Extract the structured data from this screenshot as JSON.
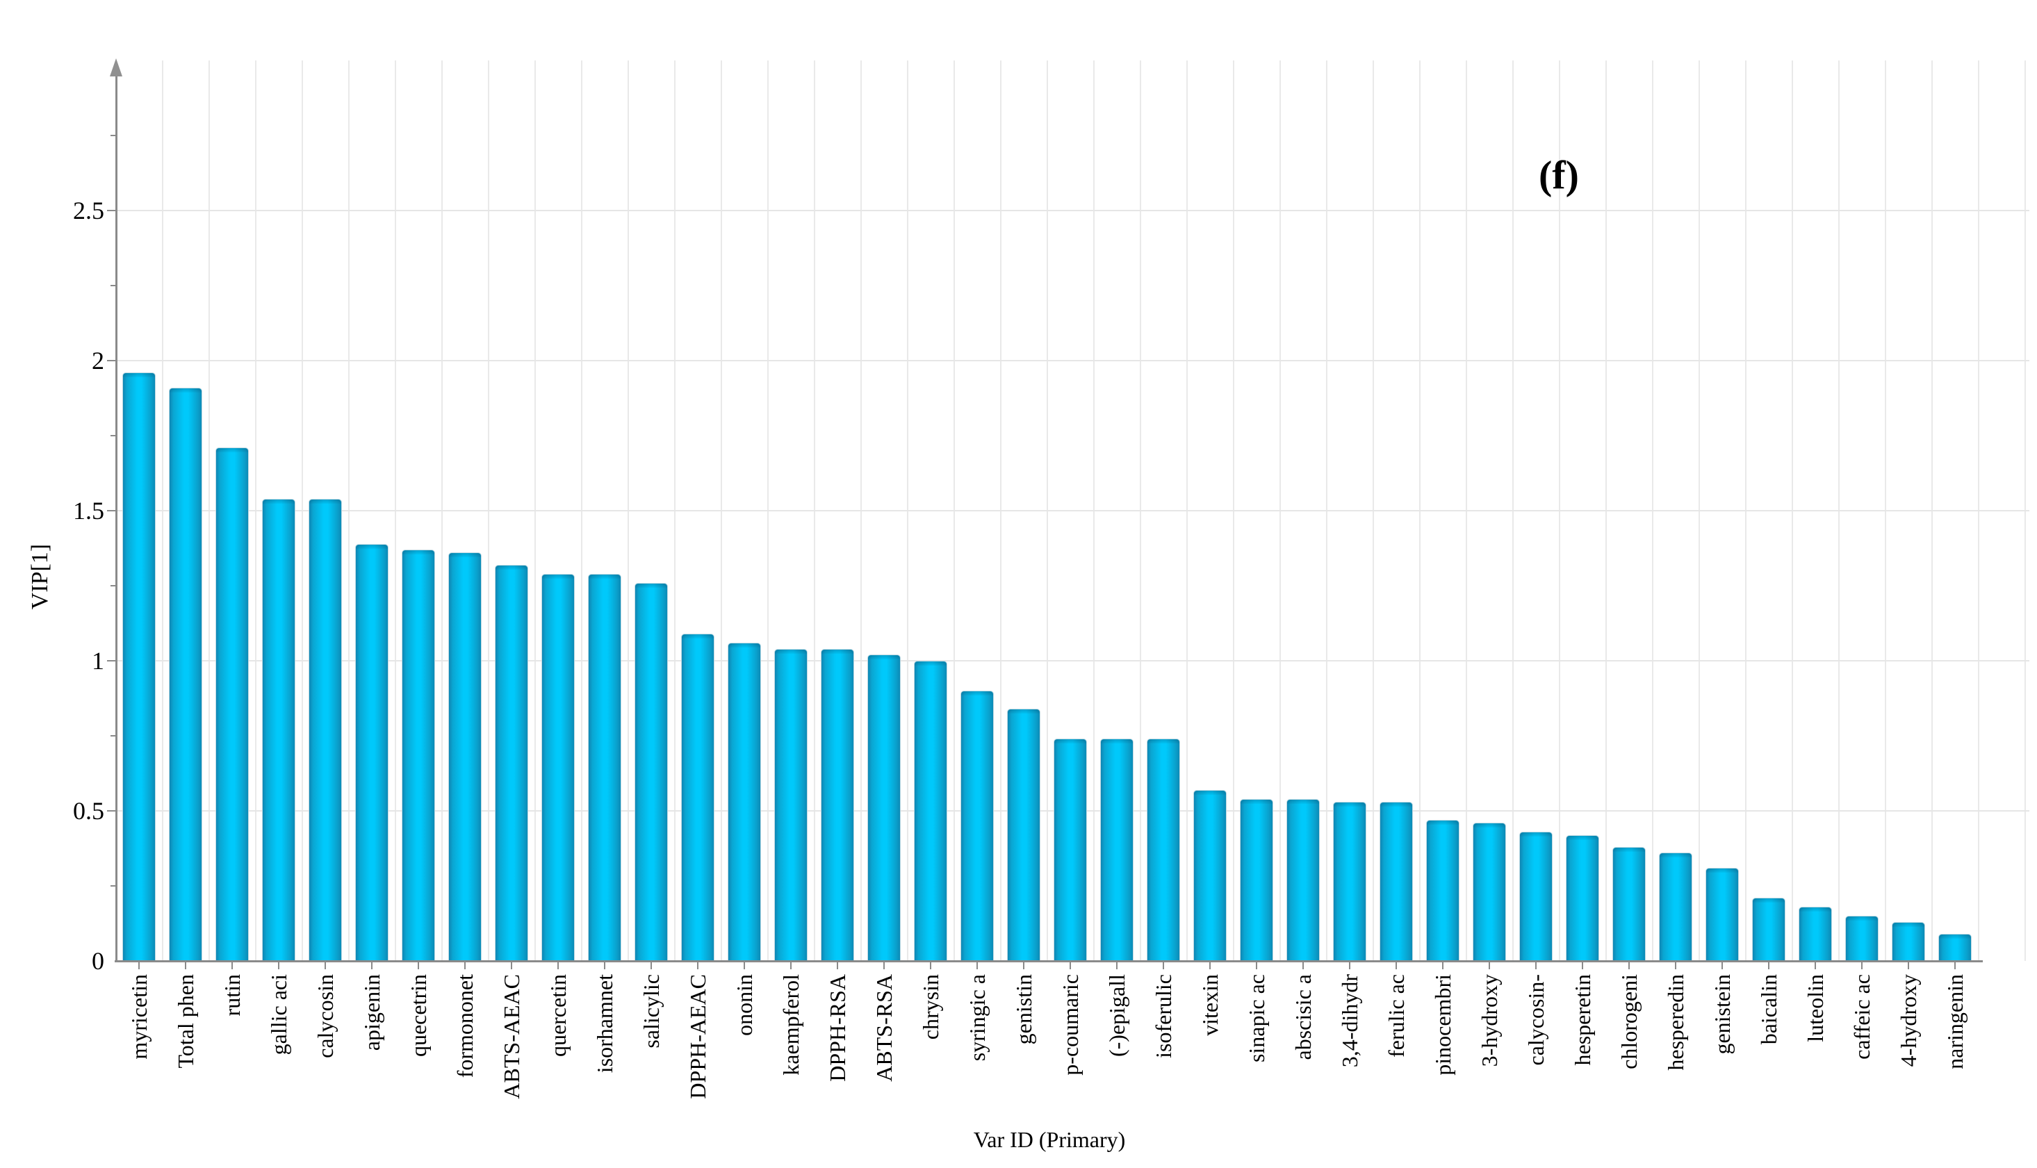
{
  "figure_label": "(f)",
  "chart_data": {
    "type": "bar",
    "title": "",
    "xlabel": "Var ID (Primary)",
    "ylabel": "VIP[1]",
    "ylim": [
      0,
      2.96
    ],
    "grid": true,
    "legend_position": "none",
    "y_major_values": [
      0,
      0.5,
      1,
      1.5,
      2,
      2.5
    ],
    "y_tick_labels": [
      "0",
      "0.5",
      "1",
      "1.5",
      "2",
      "2.5"
    ],
    "y_minor_tick_step": 0.25,
    "bar_color_center": "#00c9fb",
    "bar_color_edge": "#0f86b3",
    "categories": [
      "myricetin",
      "Total phen",
      "rutin",
      "gallic aci",
      "calycosin",
      "apigenin",
      "quecetrin",
      "formononet",
      "ABTS-AEAC",
      "quercetin",
      "isorhamnet",
      "salicylic",
      "DPPH-AEAC",
      "ononin",
      "kaempferol",
      "DPPH-RSA",
      "ABTS-RSA",
      "chrysin",
      "syringic a",
      "genistin",
      "p-coumaric",
      "(-)epigall",
      "isoferulic",
      "vitexin",
      "sinapic ac",
      "abscisic a",
      "3,4-dihydr",
      "ferulic ac",
      "pinocembri",
      "3-hydroxy",
      "calycosin-",
      "hesperetin",
      "chlorogeni",
      "hesperedin",
      "genistein",
      "baicalin",
      "luteolin",
      "caffeic ac",
      "4-hydroxy",
      "naringenin"
    ],
    "values": [
      1.96,
      1.91,
      1.71,
      1.54,
      1.54,
      1.39,
      1.37,
      1.36,
      1.32,
      1.29,
      1.29,
      1.26,
      1.09,
      1.06,
      1.04,
      1.04,
      1.02,
      1.0,
      0.9,
      0.84,
      0.74,
      0.74,
      0.74,
      0.57,
      0.54,
      0.54,
      0.53,
      0.53,
      0.47,
      0.46,
      0.43,
      0.42,
      0.38,
      0.36,
      0.31,
      0.21,
      0.18,
      0.15,
      0.13,
      0.09
    ]
  },
  "colors": {
    "axis": "#8a8a8a",
    "gridline": "#e8e8e8",
    "text": "#000000",
    "background": "#ffffff"
  }
}
